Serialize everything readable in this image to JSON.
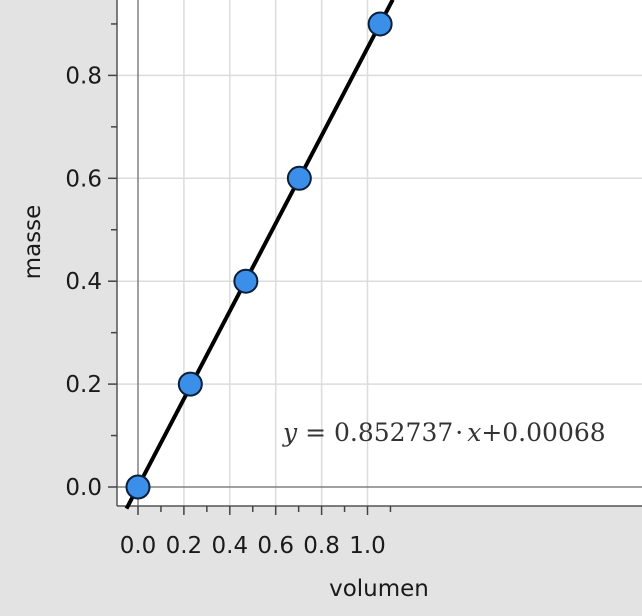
{
  "chart_data": {
    "type": "scatter",
    "title": "",
    "xlabel": "volumen",
    "ylabel": "masse",
    "x_ticks": [
      "0.0",
      "0.2",
      "0.4",
      "0.6",
      "0.8",
      "1.0"
    ],
    "y_ticks": [
      "0.0",
      "0.2",
      "0.4",
      "0.6",
      "0.8"
    ],
    "xlim": [
      -0.05,
      1.11
    ],
    "ylim": [
      -0.04,
      0.95
    ],
    "grid": true,
    "legend": "none",
    "series": [
      {
        "points": [
          {
            "x": 0.0,
            "y": 0.0
          },
          {
            "x": 0.228,
            "y": 0.2
          },
          {
            "x": 0.47,
            "y": 0.4
          },
          {
            "x": 0.703,
            "y": 0.6
          },
          {
            "x": 1.055,
            "y": 0.9
          }
        ]
      }
    ],
    "regression": {
      "slope": 0.852737,
      "intercept": 0.00068,
      "equation_parts": {
        "y": "y",
        "equals": " = 0.852737",
        "dot": "·",
        "x": "x",
        "rest": "+0.00068"
      }
    },
    "colors": {
      "marker_fill": "#3b8fe8",
      "marker_stroke": "#0b1f3a",
      "line": "#000000",
      "plot_bg": "#ffffff",
      "grid": "#dcdcdc",
      "axis": "#808080",
      "outer_bg": "#e3e3e3"
    }
  }
}
